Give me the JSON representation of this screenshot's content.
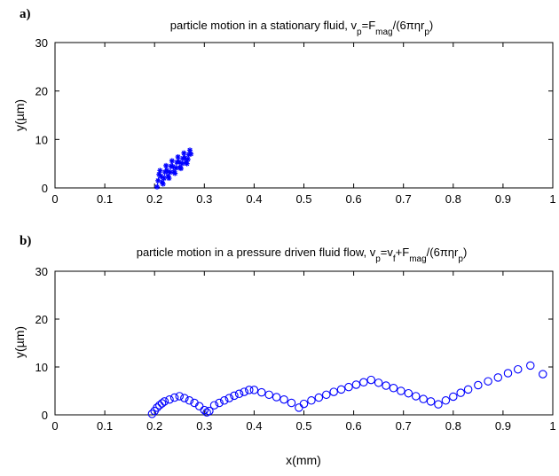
{
  "panels": [
    {
      "label": "a)"
    },
    {
      "label": "b)"
    }
  ],
  "chart_data": [
    {
      "type": "line",
      "title": "particle motion in a stationary fluid, v_p=F_mag/(6πηr_p)",
      "xlabel": "",
      "ylabel": "y(µm)",
      "xlim": [
        0,
        1
      ],
      "ylim": [
        0,
        30
      ],
      "xticks": [
        "0",
        "0.1",
        "0.2",
        "0.3",
        "0.4",
        "0.5",
        "0.6",
        "0.7",
        "0.8",
        "0.9",
        "1"
      ],
      "yticks": [
        "0",
        "10",
        "20",
        "30"
      ],
      "series": [
        {
          "color": "#0000ff",
          "marker": "asterisk",
          "x": [
            0.205,
            0.207,
            0.209,
            0.211,
            0.213,
            0.215,
            0.217,
            0.219,
            0.221,
            0.223,
            0.225,
            0.227,
            0.229,
            0.231,
            0.233,
            0.235,
            0.237,
            0.239,
            0.241,
            0.243,
            0.245,
            0.247,
            0.249,
            0.251,
            0.253,
            0.255,
            0.257,
            0.259,
            0.261,
            0.263,
            0.265,
            0.267,
            0.269,
            0.271,
            0.273
          ],
          "y": [
            0.2,
            1.5,
            2.8,
            3.6,
            2.4,
            1.2,
            0.8,
            2.0,
            3.3,
            4.6,
            3.6,
            2.4,
            2.0,
            3.2,
            4.5,
            5.6,
            4.4,
            3.3,
            3.0,
            4.1,
            5.3,
            6.4,
            5.4,
            4.2,
            4.0,
            5.0,
            6.1,
            7.2,
            6.2,
            5.2,
            5.0,
            5.9,
            6.9,
            7.8,
            7.0
          ]
        }
      ]
    },
    {
      "type": "scatter",
      "title": "particle motion in a pressure driven fluid flow, v_p=v_f+F_mag/(6πηr_p)",
      "xlabel": "x(mm)",
      "ylabel": "y(µm)",
      "xlim": [
        0,
        1
      ],
      "ylim": [
        0,
        30
      ],
      "xticks": [
        "0",
        "0.1",
        "0.2",
        "0.3",
        "0.4",
        "0.5",
        "0.6",
        "0.7",
        "0.8",
        "0.9",
        "1"
      ],
      "yticks": [
        "0",
        "10",
        "20",
        "30"
      ],
      "series": [
        {
          "color": "#0000ff",
          "marker": "circle",
          "x": [
            0.195,
            0.2,
            0.205,
            0.21,
            0.215,
            0.22,
            0.23,
            0.24,
            0.25,
            0.26,
            0.27,
            0.28,
            0.29,
            0.3,
            0.305,
            0.31,
            0.32,
            0.33,
            0.34,
            0.35,
            0.36,
            0.37,
            0.38,
            0.39,
            0.4,
            0.415,
            0.43,
            0.445,
            0.46,
            0.475,
            0.49,
            0.5,
            0.515,
            0.53,
            0.545,
            0.56,
            0.575,
            0.59,
            0.605,
            0.62,
            0.635,
            0.65,
            0.665,
            0.68,
            0.695,
            0.71,
            0.725,
            0.74,
            0.755,
            0.77,
            0.785,
            0.8,
            0.815,
            0.83,
            0.85,
            0.87,
            0.89,
            0.91,
            0.93,
            0.955,
            0.98
          ],
          "y": [
            0.2,
            0.8,
            1.5,
            2.0,
            2.4,
            2.8,
            3.2,
            3.6,
            3.9,
            3.5,
            3.0,
            2.5,
            1.8,
            1.0,
            0.5,
            0.8,
            2.0,
            2.5,
            3.0,
            3.5,
            4.0,
            4.4,
            4.8,
            5.2,
            5.2,
            4.7,
            4.2,
            3.7,
            3.2,
            2.5,
            1.5,
            2.3,
            3.0,
            3.6,
            4.2,
            4.8,
            5.3,
            5.8,
            6.3,
            6.8,
            7.3,
            6.7,
            6.1,
            5.6,
            5.0,
            4.5,
            3.9,
            3.3,
            2.8,
            2.2,
            3.0,
            3.8,
            4.6,
            5.3,
            6.2,
            7.0,
            7.8,
            8.7,
            9.5,
            10.3,
            8.5
          ]
        }
      ]
    }
  ]
}
